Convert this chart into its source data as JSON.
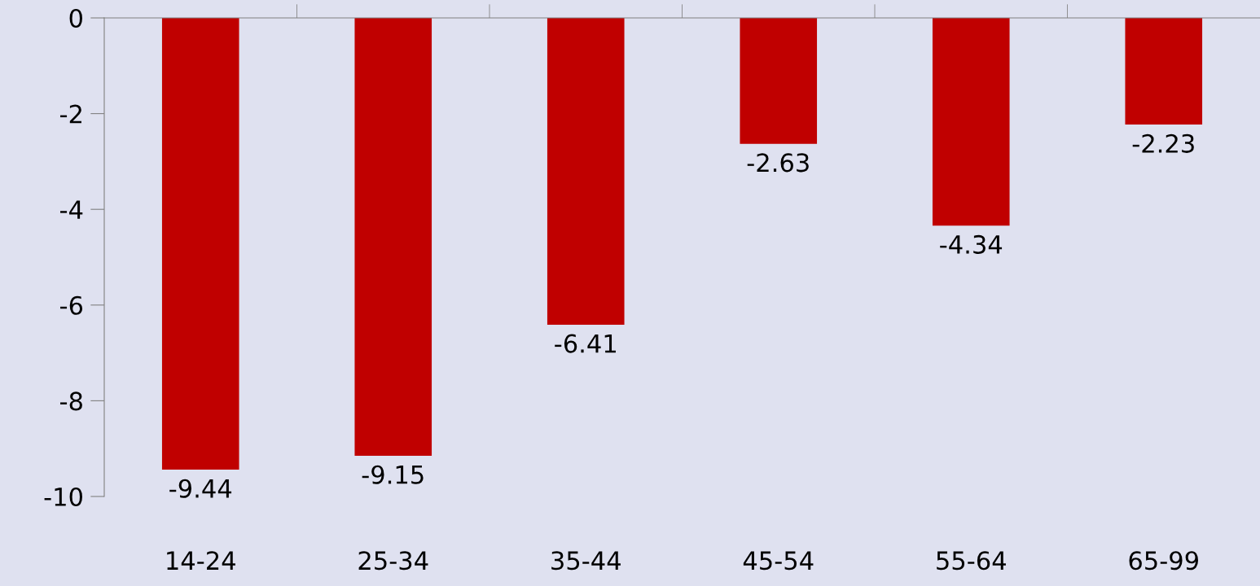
{
  "chart_data": {
    "type": "bar",
    "categories": [
      "14-24",
      "25-34",
      "35-44",
      "45-54",
      "55-64",
      "65-99"
    ],
    "values": [
      -9.44,
      -9.15,
      -6.41,
      -2.63,
      -4.34,
      -2.23
    ],
    "color": "#c00000",
    "ylim": [
      -10,
      0
    ],
    "yticks": [
      0,
      -2,
      -4,
      -6,
      -8,
      -10
    ],
    "data_labels": true,
    "grid": false,
    "legend": false
  }
}
